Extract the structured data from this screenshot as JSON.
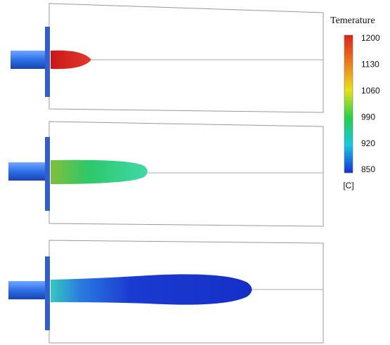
{
  "colorbar": {
    "title": "Temerature",
    "ticks": [
      "1200",
      "1130",
      "1060",
      "990",
      "920",
      "850"
    ],
    "unit": "[C]"
  }
}
